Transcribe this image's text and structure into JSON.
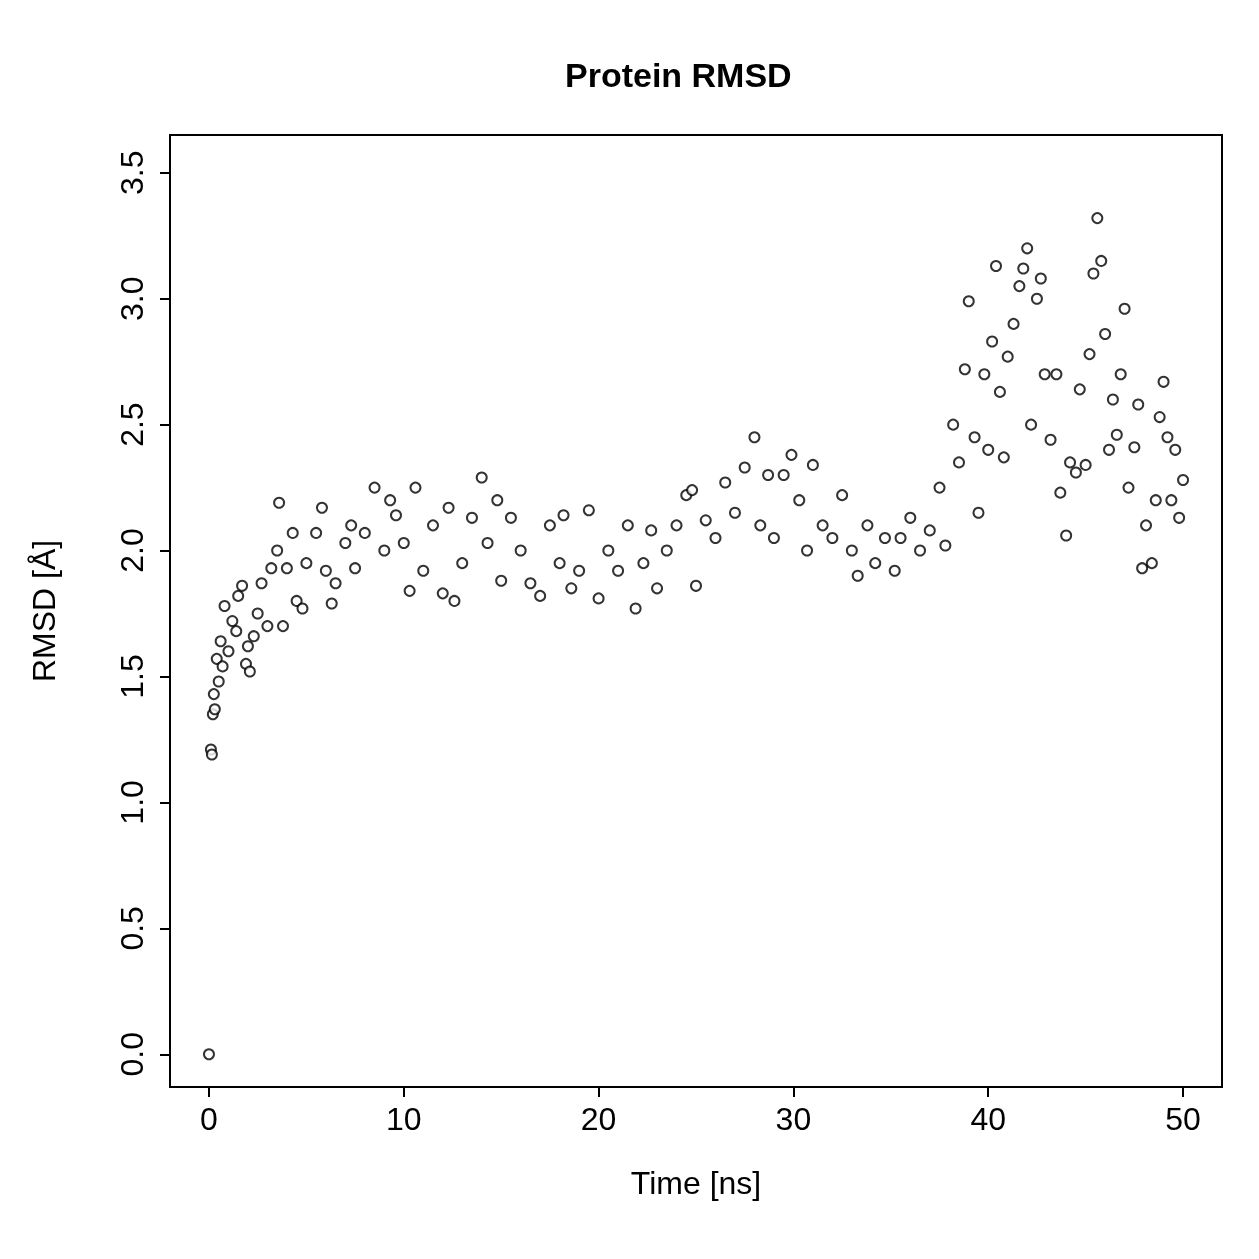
{
  "chart_data": {
    "type": "scatter",
    "title": "Protein RMSD",
    "xlabel": "Time [ns]",
    "ylabel": "RMSD [Å]",
    "xlim": [
      -2,
      52
    ],
    "xticks": [
      0,
      10,
      20,
      30,
      40,
      50
    ],
    "ylim": [
      -0.13,
      3.65
    ],
    "yticks": [
      {
        "value": 0,
        "label": "0.0"
      },
      {
        "value": 0.5,
        "label": "0.5"
      },
      {
        "value": 1,
        "label": "1.0"
      },
      {
        "value": 1.5,
        "label": "1.5"
      },
      {
        "value": 2,
        "label": "2.0"
      },
      {
        "value": 2.5,
        "label": "2.5"
      },
      {
        "value": 3,
        "label": "3.0"
      },
      {
        "value": 3.5,
        "label": "3.5"
      }
    ],
    "grid": false,
    "marker": "circle",
    "series": [
      {
        "color": "#000000",
        "x": [
          0,
          0.1,
          0.15,
          0.2,
          0.25,
          0.3,
          0.4,
          0.5,
          0.6,
          0.7,
          0.8,
          1.0,
          1.2,
          1.4,
          1.5,
          1.7,
          1.9,
          2.0,
          2.1,
          2.3,
          2.5,
          2.7,
          3.0,
          3.2,
          3.5,
          3.6,
          3.8,
          4.0,
          4.3,
          4.5,
          4.8,
          5.0,
          5.5,
          5.8,
          6.0,
          6.3,
          6.5,
          7.0,
          7.3,
          7.5,
          8.0,
          8.5,
          9.0,
          9.3,
          9.6,
          10.0,
          10.3,
          10.6,
          11.0,
          11.5,
          12.0,
          12.3,
          12.6,
          13.0,
          13.5,
          14.0,
          14.3,
          14.8,
          15.0,
          15.5,
          16.0,
          16.5,
          17.0,
          17.5,
          18.0,
          18.2,
          18.6,
          19.0,
          19.5,
          20.0,
          20.5,
          21.0,
          21.5,
          21.9,
          22.3,
          22.7,
          23.0,
          23.5,
          24.0,
          24.5,
          24.8,
          25.0,
          25.5,
          26.0,
          26.5,
          27.0,
          27.5,
          28.0,
          28.3,
          28.7,
          29.0,
          29.5,
          29.9,
          30.3,
          30.7,
          31.0,
          31.5,
          32.0,
          32.5,
          33.0,
          33.3,
          33.8,
          34.2,
          34.7,
          35.2,
          35.5,
          36.0,
          36.5,
          37.0,
          37.5,
          37.8,
          38.2,
          38.5,
          38.8,
          39.0,
          39.3,
          39.5,
          39.8,
          40.0,
          40.2,
          40.4,
          40.6,
          40.8,
          41.0,
          41.3,
          41.6,
          41.8,
          42.0,
          42.2,
          42.5,
          42.7,
          42.9,
          43.2,
          43.5,
          43.7,
          44.0,
          44.2,
          44.5,
          44.7,
          45.0,
          45.2,
          45.4,
          45.6,
          45.8,
          46.0,
          46.2,
          46.4,
          46.6,
          46.8,
          47.0,
          47.2,
          47.5,
          47.7,
          47.9,
          48.1,
          48.4,
          48.6,
          48.8,
          49.0,
          49.2,
          49.4,
          49.6,
          49.8,
          50.0
        ],
        "values": [
          0.0,
          1.21,
          1.19,
          1.35,
          1.43,
          1.37,
          1.57,
          1.48,
          1.64,
          1.54,
          1.78,
          1.6,
          1.72,
          1.68,
          1.82,
          1.86,
          1.55,
          1.62,
          1.52,
          1.66,
          1.75,
          1.87,
          1.7,
          1.93,
          2.0,
          2.19,
          1.7,
          1.93,
          2.07,
          1.8,
          1.77,
          1.95,
          2.07,
          2.17,
          1.92,
          1.79,
          1.87,
          2.03,
          2.1,
          1.93,
          2.07,
          2.25,
          2.0,
          2.2,
          2.14,
          2.03,
          1.84,
          2.25,
          1.92,
          2.1,
          1.83,
          2.17,
          1.8,
          1.95,
          2.13,
          2.29,
          2.03,
          2.2,
          1.88,
          2.13,
          2.0,
          1.87,
          1.82,
          2.1,
          1.95,
          2.14,
          1.85,
          1.92,
          2.16,
          1.81,
          2.0,
          1.92,
          2.1,
          1.77,
          1.95,
          2.08,
          1.85,
          2.0,
          2.1,
          2.22,
          2.24,
          1.86,
          2.12,
          2.05,
          2.27,
          2.15,
          2.33,
          2.45,
          2.1,
          2.3,
          2.05,
          2.3,
          2.38,
          2.2,
          2.0,
          2.34,
          2.1,
          2.05,
          2.22,
          2.0,
          1.9,
          2.1,
          1.95,
          2.05,
          1.92,
          2.05,
          2.13,
          2.0,
          2.08,
          2.25,
          2.02,
          2.5,
          2.35,
          2.72,
          2.99,
          2.45,
          2.15,
          2.7,
          2.4,
          2.83,
          3.13,
          2.63,
          2.37,
          2.77,
          2.9,
          3.05,
          3.12,
          3.2,
          2.5,
          3.0,
          3.08,
          2.7,
          2.44,
          2.7,
          2.23,
          2.06,
          2.35,
          2.31,
          2.64,
          2.34,
          2.78,
          3.1,
          3.32,
          3.15,
          2.86,
          2.4,
          2.6,
          2.46,
          2.7,
          2.96,
          2.25,
          2.41,
          2.58,
          1.93,
          2.1,
          1.95,
          2.2,
          2.53,
          2.67,
          2.45,
          2.2,
          2.4,
          2.13,
          2.28
        ]
      }
    ]
  }
}
